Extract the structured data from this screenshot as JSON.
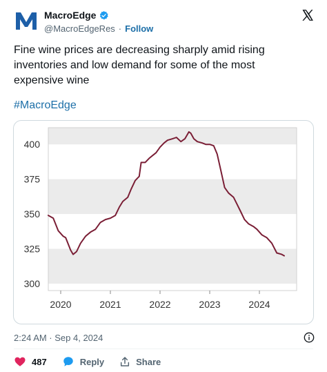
{
  "tweet": {
    "author_name": "MacroEdge",
    "handle": "@MacroEdgeRes",
    "separator": "·",
    "follow_label": "Follow",
    "text": "Fine wine prices are decreasing sharply amid rising inventories and low demand for some of the most expensive wine",
    "hashtag": "#MacroEdge",
    "timestamp": "2:24 AM · Sep 4, 2024",
    "likes_count": "487",
    "reply_label": "Reply",
    "share_label": "Share"
  },
  "colors": {
    "line": "#7a1e35",
    "band": "#ebebeb",
    "like": "#e0245e",
    "link": "#1d6fa8",
    "verified": "#1d9bf0"
  },
  "icons": {
    "avatar": "macroedge-logo",
    "verified": "verified-badge-icon",
    "x_logo": "x-logo-icon",
    "info": "info-icon",
    "like": "heart-icon",
    "reply": "speech-bubble-icon",
    "share": "share-icon"
  },
  "chart_data": {
    "type": "line",
    "title": "",
    "xlabel": "",
    "ylabel": "",
    "x_ticks": [
      "2020",
      "2021",
      "2022",
      "2023",
      "2024"
    ],
    "y_ticks": [
      "300",
      "325",
      "350",
      "375",
      "400"
    ],
    "ylim": [
      295,
      412
    ],
    "xlim": [
      2019.75,
      2024.75
    ],
    "grid": "alternating horizontal bands",
    "series": [
      {
        "values": [
          [
            2019.75,
            349
          ],
          [
            2019.85,
            347
          ],
          [
            2019.95,
            338
          ],
          [
            2020.05,
            334
          ],
          [
            2020.1,
            333
          ],
          [
            2020.2,
            324
          ],
          [
            2020.25,
            321
          ],
          [
            2020.32,
            323
          ],
          [
            2020.4,
            329
          ],
          [
            2020.5,
            334
          ],
          [
            2020.6,
            337
          ],
          [
            2020.7,
            339
          ],
          [
            2020.8,
            344
          ],
          [
            2020.9,
            346
          ],
          [
            2021.0,
            347
          ],
          [
            2021.1,
            349
          ],
          [
            2021.18,
            355
          ],
          [
            2021.25,
            359
          ],
          [
            2021.35,
            362
          ],
          [
            2021.42,
            368
          ],
          [
            2021.5,
            374
          ],
          [
            2021.58,
            377
          ],
          [
            2021.62,
            387
          ],
          [
            2021.7,
            387
          ],
          [
            2021.78,
            390
          ],
          [
            2021.85,
            392
          ],
          [
            2021.92,
            394
          ],
          [
            2022.0,
            398
          ],
          [
            2022.08,
            401
          ],
          [
            2022.15,
            403
          ],
          [
            2022.25,
            404
          ],
          [
            2022.33,
            405
          ],
          [
            2022.42,
            402
          ],
          [
            2022.5,
            404
          ],
          [
            2022.58,
            409
          ],
          [
            2022.62,
            408
          ],
          [
            2022.68,
            404
          ],
          [
            2022.75,
            402
          ],
          [
            2022.85,
            401
          ],
          [
            2022.92,
            400
          ],
          [
            2023.0,
            400
          ],
          [
            2023.08,
            399
          ],
          [
            2023.15,
            393
          ],
          [
            2023.22,
            382
          ],
          [
            2023.3,
            369
          ],
          [
            2023.38,
            365
          ],
          [
            2023.48,
            362
          ],
          [
            2023.55,
            357
          ],
          [
            2023.62,
            352
          ],
          [
            2023.7,
            346
          ],
          [
            2023.78,
            343
          ],
          [
            2023.88,
            341
          ],
          [
            2023.95,
            339
          ],
          [
            2024.05,
            335
          ],
          [
            2024.15,
            333
          ],
          [
            2024.25,
            329
          ],
          [
            2024.35,
            322
          ],
          [
            2024.45,
            321
          ],
          [
            2024.5,
            320
          ]
        ]
      }
    ]
  }
}
